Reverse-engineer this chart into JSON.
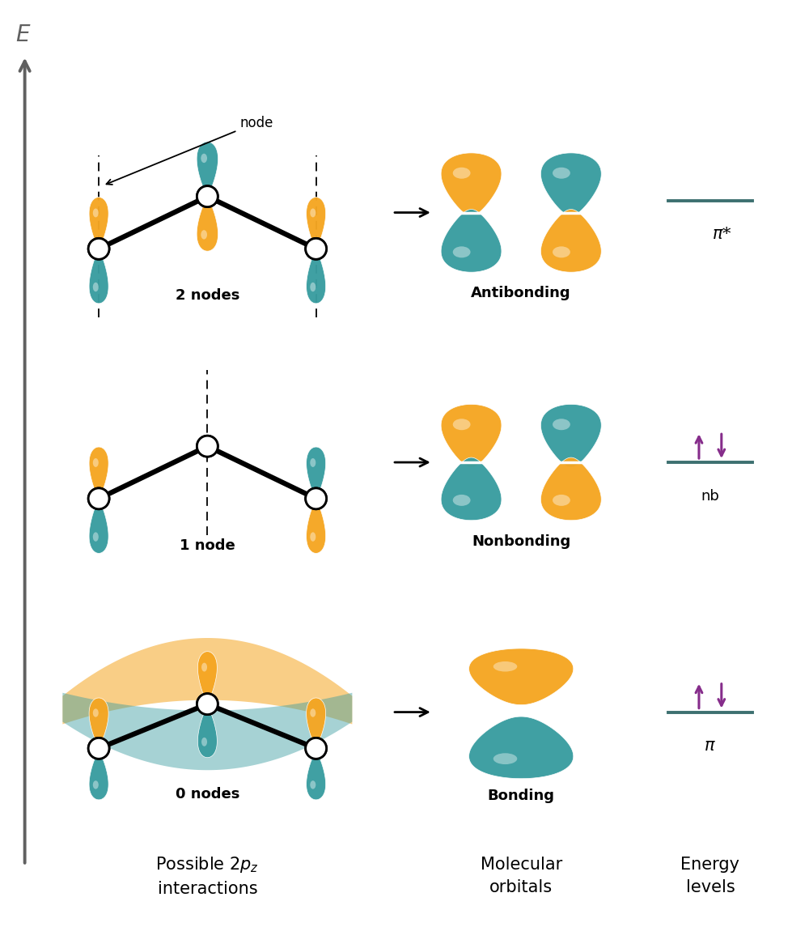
{
  "orange": "#F5A623",
  "teal": "#3A9DA0",
  "orange_band": "#F5A623",
  "teal_band": "#5AABAE",
  "bg": "#FFFFFF",
  "gray_axis": "#606060",
  "purple": "#862D8B",
  "dark": "#111111",
  "texts": {
    "node": "node",
    "two_nodes": "2 nodes",
    "one_node": "1 node",
    "zero_nodes": "0 nodes",
    "antibonding": "Antibonding",
    "nonbonding": "Nonbonding",
    "bonding": "Bonding",
    "mo_col": "Molecular\norbitals",
    "int_col": "Possible 2$p_z$\ninteractions",
    "en_col": "Energy\nlevels",
    "pi_star": "$\\pi$*",
    "nb": "nb",
    "pi": "$\\pi$",
    "E": "$\\it{E}$"
  }
}
